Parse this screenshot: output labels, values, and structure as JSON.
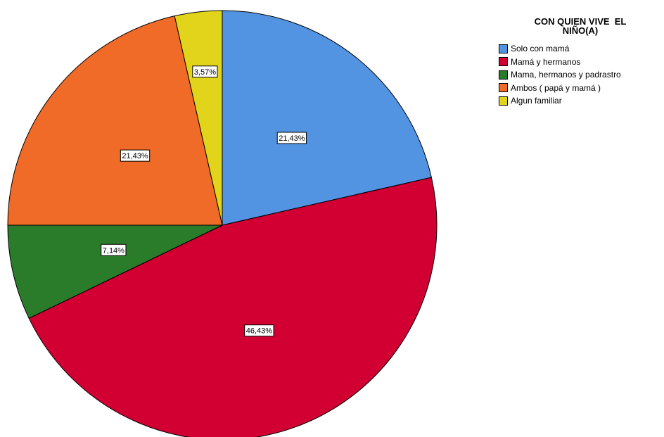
{
  "chart_data": {
    "type": "pie",
    "title": "CON QUIEN VIVE  EL\nNIÑO(A)",
    "legend_placement": "top-right",
    "categories": [
      "Solo con mamá",
      "Mamá y hermanos",
      "Mama, hermanos y padrastro",
      "Ambos ( papá y mamá )",
      "Algun familiar"
    ],
    "values": [
      21.43,
      46.43,
      7.14,
      21.43,
      3.57
    ],
    "data_labels": [
      "21,43%",
      "46,43%",
      "7,14%",
      "21,43%",
      "3,57%"
    ],
    "colors": [
      "#5294e2",
      "#d20032",
      "#2a7b2a",
      "#f06a28",
      "#e2d41a"
    ]
  }
}
